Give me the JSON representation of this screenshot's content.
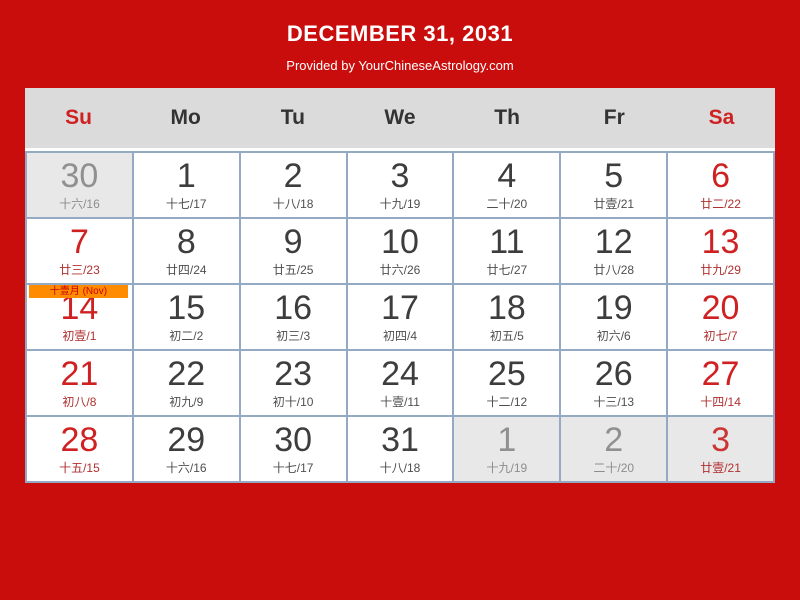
{
  "page": {
    "title": "DECEMBER 31, 2031",
    "subtitle": "Provided by YourChineseAstrology.com"
  },
  "colors": {
    "page_background": "#c90d0d",
    "header_background": "#dbdbdb",
    "grid_border": "#93a9c4",
    "weekend_red": "#cf2121",
    "adjacent_cell_background": "#e8e8e8",
    "badge_background": "#ff8c00",
    "badge_text": "#cc0000"
  },
  "calendar": {
    "weekdays": [
      {
        "label": "Su",
        "weekend": true
      },
      {
        "label": "Mo",
        "weekend": false
      },
      {
        "label": "Tu",
        "weekend": false
      },
      {
        "label": "We",
        "weekend": false
      },
      {
        "label": "Th",
        "weekend": false
      },
      {
        "label": "Fr",
        "weekend": false
      },
      {
        "label": "Sa",
        "weekend": true
      }
    ],
    "weeks": [
      [
        {
          "day": "30",
          "lunar": "十六/16",
          "type": "adjacent"
        },
        {
          "day": "1",
          "lunar": "十七/17",
          "type": "normal"
        },
        {
          "day": "2",
          "lunar": "十八/18",
          "type": "normal"
        },
        {
          "day": "3",
          "lunar": "十九/19",
          "type": "normal"
        },
        {
          "day": "4",
          "lunar": "二十/20",
          "type": "normal"
        },
        {
          "day": "5",
          "lunar": "廿壹/21",
          "type": "normal"
        },
        {
          "day": "6",
          "lunar": "廿二/22",
          "type": "weekend"
        }
      ],
      [
        {
          "day": "7",
          "lunar": "廿三/23",
          "type": "weekend"
        },
        {
          "day": "8",
          "lunar": "廿四/24",
          "type": "normal"
        },
        {
          "day": "9",
          "lunar": "廿五/25",
          "type": "normal"
        },
        {
          "day": "10",
          "lunar": "廿六/26",
          "type": "normal"
        },
        {
          "day": "11",
          "lunar": "廿七/27",
          "type": "normal"
        },
        {
          "day": "12",
          "lunar": "廿八/28",
          "type": "normal"
        },
        {
          "day": "13",
          "lunar": "廿九/29",
          "type": "weekend"
        }
      ],
      [
        {
          "day": "14",
          "lunar": "初壹/1",
          "type": "weekend",
          "badge": "十壹月 (Nov)"
        },
        {
          "day": "15",
          "lunar": "初二/2",
          "type": "normal"
        },
        {
          "day": "16",
          "lunar": "初三/3",
          "type": "normal"
        },
        {
          "day": "17",
          "lunar": "初四/4",
          "type": "normal"
        },
        {
          "day": "18",
          "lunar": "初五/5",
          "type": "normal"
        },
        {
          "day": "19",
          "lunar": "初六/6",
          "type": "normal"
        },
        {
          "day": "20",
          "lunar": "初七/7",
          "type": "weekend"
        }
      ],
      [
        {
          "day": "21",
          "lunar": "初八/8",
          "type": "weekend"
        },
        {
          "day": "22",
          "lunar": "初九/9",
          "type": "normal"
        },
        {
          "day": "23",
          "lunar": "初十/10",
          "type": "normal"
        },
        {
          "day": "24",
          "lunar": "十壹/11",
          "type": "normal"
        },
        {
          "day": "25",
          "lunar": "十二/12",
          "type": "normal"
        },
        {
          "day": "26",
          "lunar": "十三/13",
          "type": "normal"
        },
        {
          "day": "27",
          "lunar": "十四/14",
          "type": "weekend"
        }
      ],
      [
        {
          "day": "28",
          "lunar": "十五/15",
          "type": "weekend"
        },
        {
          "day": "29",
          "lunar": "十六/16",
          "type": "normal"
        },
        {
          "day": "30",
          "lunar": "十七/17",
          "type": "normal"
        },
        {
          "day": "31",
          "lunar": "十八/18",
          "type": "normal"
        },
        {
          "day": "1",
          "lunar": "十九/19",
          "type": "adjacent"
        },
        {
          "day": "2",
          "lunar": "二十/20",
          "type": "adjacent"
        },
        {
          "day": "3",
          "lunar": "廿壹/21",
          "type": "adjacent-weekend"
        }
      ]
    ]
  }
}
